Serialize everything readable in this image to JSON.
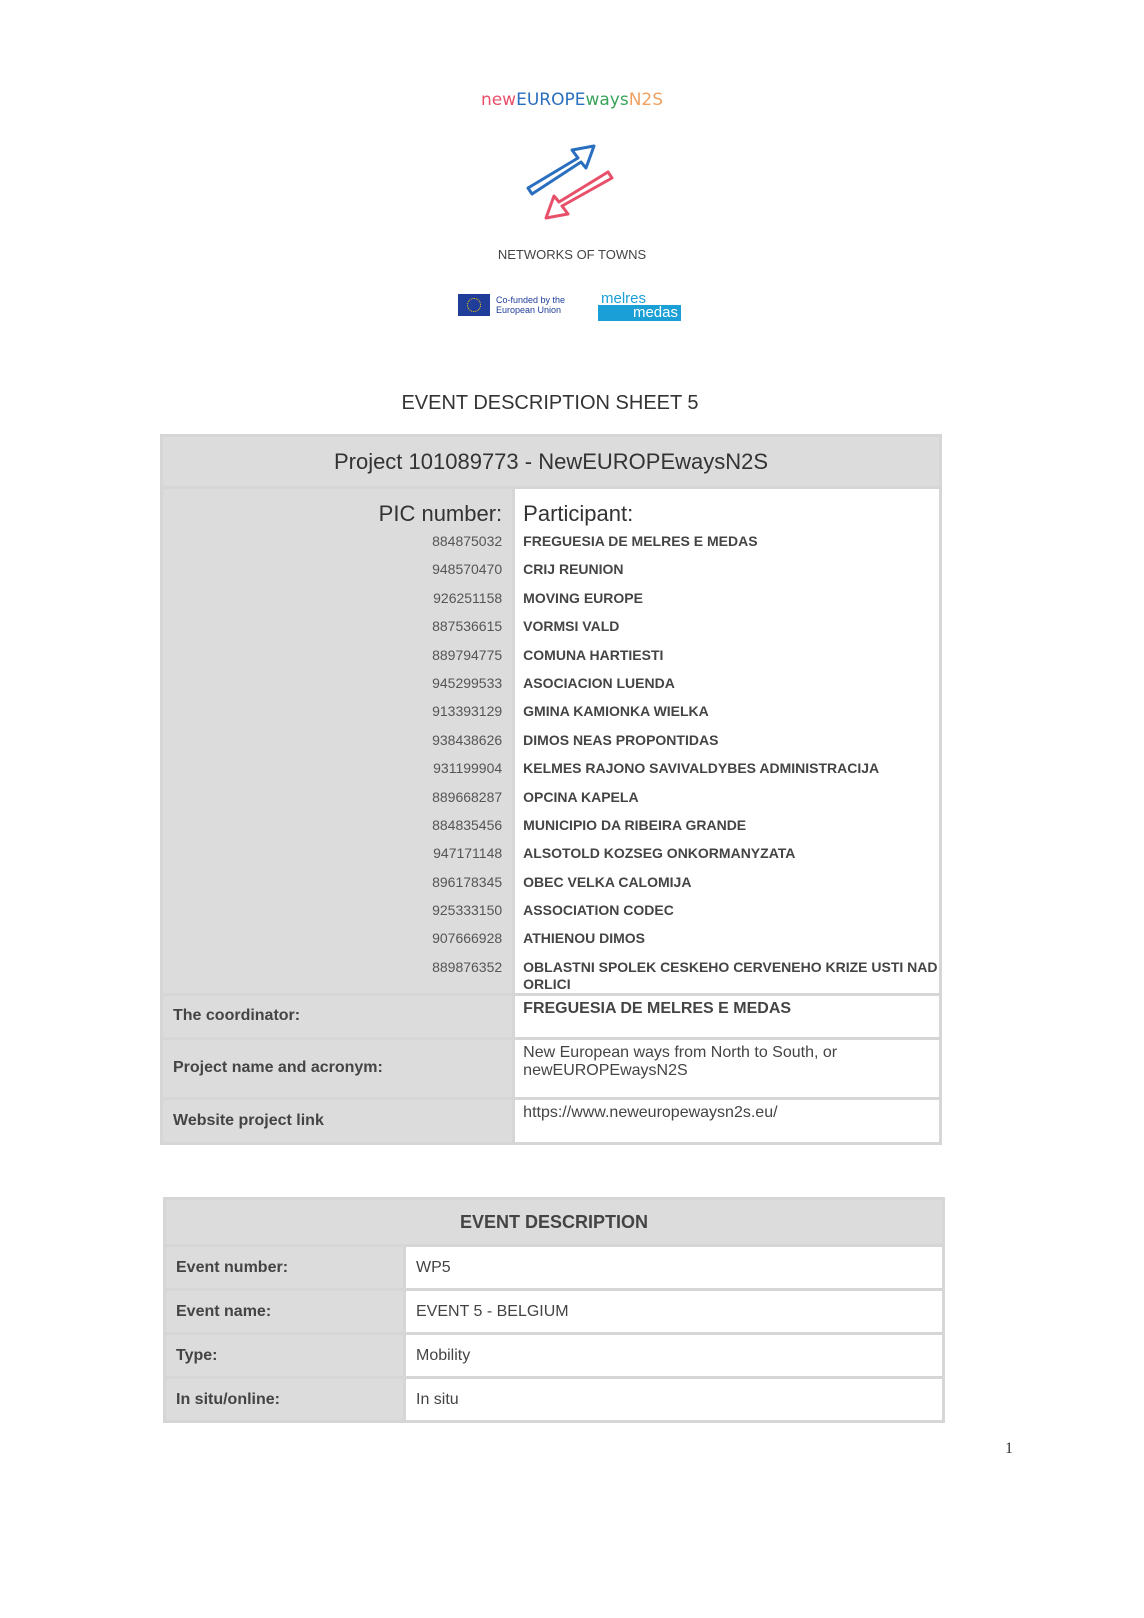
{
  "header": {
    "brand_parts": [
      {
        "text": "new",
        "color": "#e8506a"
      },
      {
        "text": "EUROPE",
        "color": "#2a6fbf"
      },
      {
        "text": "ways",
        "color": "#3aa35a"
      },
      {
        "text": "N2S",
        "color": "#f0a060"
      }
    ],
    "tagline": "NETWORKS OF TOWNS",
    "eu_line1": "Co-funded by the",
    "eu_line2": "European Union",
    "partner_top": "melres",
    "partner_bottom": "medas"
  },
  "title": "EVENT DESCRIPTION SHEET 5",
  "project_table": {
    "heading": "Project 101089773 - NewEUROPEwaysN2S",
    "pic_label": "PIC number:",
    "participant_label": "Participant:",
    "participants": [
      {
        "pic": "884875032",
        "name": "FREGUESIA DE MELRES E MEDAS"
      },
      {
        "pic": "948570470",
        "name": "CRIJ REUNION"
      },
      {
        "pic": "926251158",
        "name": "MOVING EUROPE"
      },
      {
        "pic": "887536615",
        "name": "VORMSI VALD"
      },
      {
        "pic": "889794775",
        "name": "COMUNA HARTIESTI"
      },
      {
        "pic": "945299533",
        "name": "ASOCIACION LUENDA"
      },
      {
        "pic": "913393129",
        "name": "GMINA KAMIONKA WIELKA"
      },
      {
        "pic": "938438626",
        "name": "DIMOS NEAS PROPONTIDAS"
      },
      {
        "pic": "931199904",
        "name": "KELMES RAJONO SAVIVALDYBES ADMINISTRACIJA"
      },
      {
        "pic": "889668287",
        "name": "OPCINA KAPELA"
      },
      {
        "pic": "884835456",
        "name": "MUNICIPIO DA RIBEIRA GRANDE"
      },
      {
        "pic": "947171148",
        "name": "ALSOTOLD KOZSEG ONKORMANYZATA"
      },
      {
        "pic": "896178345",
        "name": "OBEC VELKA CALOMIJA"
      },
      {
        "pic": "925333150",
        "name": "ASSOCIATION CODEC"
      },
      {
        "pic": "907666928",
        "name": "ATHIENOU DIMOS"
      },
      {
        "pic": "889876352",
        "name": "OBLASTNI SPOLEK CESKEHO CERVENEHO KRIZE USTI NAD ORLICI"
      }
    ],
    "coordinator_label": "The coordinator:",
    "coordinator": "FREGUESIA DE MELRES E MEDAS",
    "project_name_label": "Project name and acronym:",
    "project_name": "New European ways from North to South, or newEUROPEwaysN2S",
    "website_label": "Website project link",
    "website": "https://www.neweuropewaysn2s.eu/"
  },
  "event_table": {
    "heading": "EVENT DESCRIPTION",
    "rows": [
      {
        "label": "Event number:",
        "value": "WP5"
      },
      {
        "label": "Event name:",
        "value": "EVENT 5 - BELGIUM"
      },
      {
        "label": "Type:",
        "value": "Mobility"
      },
      {
        "label": "In situ/online:",
        "value": "In situ"
      }
    ]
  },
  "page_number": "1"
}
